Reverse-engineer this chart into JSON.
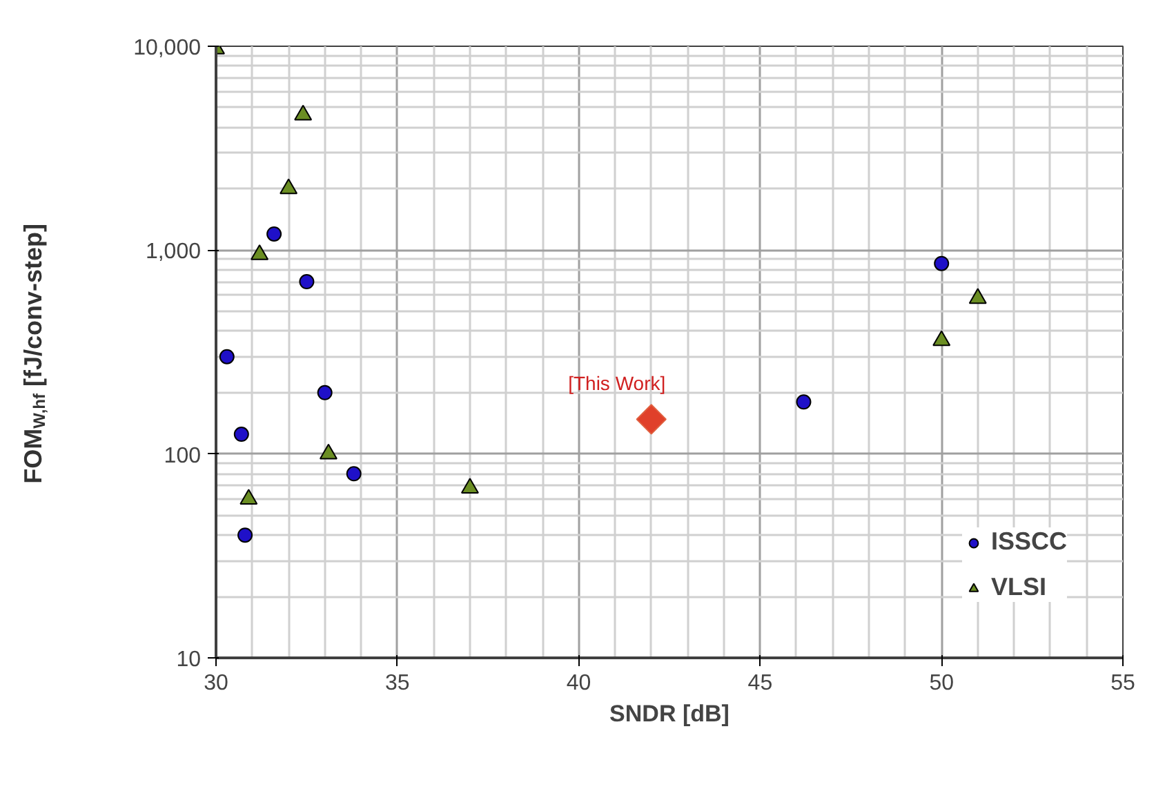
{
  "chart_data": {
    "type": "scatter",
    "xlabel": "SNDR [dB]",
    "ylabel": "FOM$_{W,hf}$ [fJ/conv-step]",
    "xlim": [
      30,
      55
    ],
    "xticks": [
      30,
      35,
      40,
      45,
      50,
      55
    ],
    "ylim": [
      10,
      10000
    ],
    "yticks": [
      {
        "value": 10,
        "label": "10"
      },
      {
        "value": 100,
        "label": "100"
      },
      {
        "value": 1000,
        "label": "1,000"
      },
      {
        "value": 10000,
        "label": "10,000"
      }
    ],
    "log": "y",
    "grid": true,
    "legend": "bottom right",
    "series": [
      {
        "name": "ISSCC",
        "color": "#1f10c8",
        "marker": "circle",
        "x": [
          31.6,
          32.5,
          30.3,
          33,
          30.7,
          33.8,
          30.8,
          46.2,
          50
        ],
        "values": [
          1200,
          700,
          300,
          200,
          125,
          80,
          40,
          180,
          860
        ]
      },
      {
        "name": "VLSI",
        "color": "#6b8e23",
        "marker": "triangle",
        "x": [
          30,
          32.4,
          32,
          31.2,
          33.1,
          30.9,
          37,
          50,
          51
        ],
        "values": [
          9700,
          4600,
          2000,
          950,
          100,
          60,
          68,
          360,
          580
        ]
      },
      {
        "color": "#e0402a",
        "marker": "diamond",
        "x": [
          42
        ],
        "values": [
          148
        ]
      }
    ],
    "annotations": [
      {
        "text": "[This Work]",
        "x": 42,
        "y": 148
      }
    ]
  }
}
